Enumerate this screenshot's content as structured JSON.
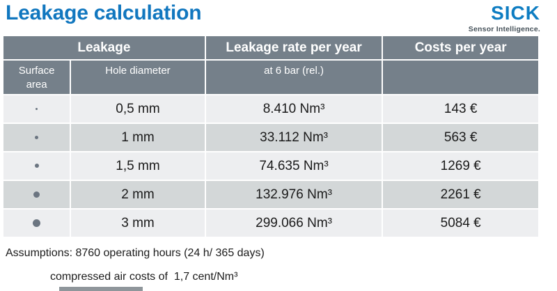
{
  "page": {
    "title": "Leakage calculation"
  },
  "logo": {
    "brand": "SICK",
    "tagline": "Sensor Intelligence.",
    "brand_color": "#0e7dc2"
  },
  "colors": {
    "title_blue": "#1177bf",
    "header_gray": "#75808a",
    "row_light": "#edeef0",
    "row_dark": "#d3d7d8",
    "dot_gray": "#6b7581"
  },
  "table": {
    "header_groups": [
      "Leakage",
      "Leakage rate per year",
      "Costs per year"
    ],
    "subheaders": {
      "surface_area": "Surface area",
      "hole_diameter": "Hole diameter",
      "pressure": "at 6 bar (rel.)",
      "costs": ""
    },
    "rows": [
      {
        "surface_dot": "smallest-dot",
        "hole_diameter": "0,5 mm",
        "leakage_rate": "8.410 Nm³",
        "cost": "143 €"
      },
      {
        "surface_dot": "small-dot",
        "hole_diameter": "1 mm",
        "leakage_rate": "33.112 Nm³",
        "cost": "563 €"
      },
      {
        "surface_dot": "medium-dot",
        "hole_diameter": "1,5 mm",
        "leakage_rate": "74.635 Nm³",
        "cost": "1269 €"
      },
      {
        "surface_dot": "large-dot",
        "hole_diameter": "2 mm",
        "leakage_rate": "132.976 Nm³",
        "cost": "2261 €"
      },
      {
        "surface_dot": "largest-dot",
        "hole_diameter": "3 mm",
        "leakage_rate": "299.066 Nm³",
        "cost": "5084 €"
      }
    ]
  },
  "assumptions": {
    "line1": "Assumptions: 8760 operating hours (24 h/ 365 days)",
    "line2": "compressed air costs of  1,7 cent/Nm³"
  }
}
